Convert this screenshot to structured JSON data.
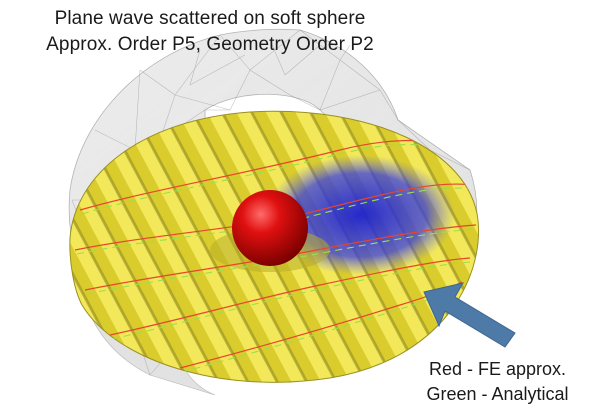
{
  "title": {
    "line1": "Plane wave scattered on soft sphere",
    "line2": "Approx. Order P5, Geometry Order P2"
  },
  "legend": {
    "line1": "Red - FE approx.",
    "line2": "Green - Analytical"
  },
  "colors": {
    "background": "#ffffff",
    "wave_positive": "#e6d83a",
    "wave_negative": "#2b2fd8",
    "sphere": "#d40a0a",
    "fe_curve": "#e8452c",
    "analytical_curve": "#9be04a",
    "arrow": "#4e7aa8",
    "mesh": "#8c8c8c"
  },
  "icons": [
    "arrow-icon",
    "sphere-icon"
  ]
}
